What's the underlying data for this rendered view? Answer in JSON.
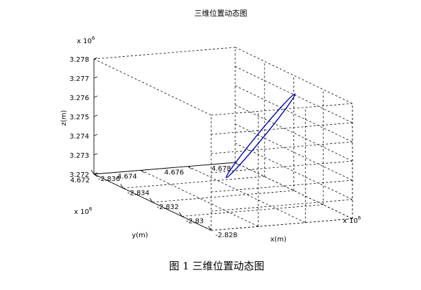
{
  "chart_data": {
    "type": "line",
    "title": "三维位置动态图",
    "xlabel": "x(m)",
    "ylabel": "y(m)",
    "zlabel": "z(m)",
    "x_exponent": "x 10",
    "y_exponent": "x 10",
    "z_exponent": "x 10",
    "exponent_power": "6",
    "xlim": [
      -2.836,
      -2.828
    ],
    "ylim": [
      4.672,
      4.678
    ],
    "zlim": [
      3.272,
      3.278
    ],
    "x_ticks": [
      "-2.836",
      "-2.834",
      "-2.832",
      "-2.83",
      "-2.828"
    ],
    "y_ticks": [
      "4.672",
      "4.674",
      "4.676",
      "4.678"
    ],
    "z_ticks": [
      "3.272",
      "3.273",
      "3.274",
      "3.275",
      "3.276",
      "3.277",
      "3.278"
    ],
    "grid": true,
    "line_color": "#0000b0",
    "series": [
      {
        "path_pixels_note": "",
        "ellipse": {
          "start_z": 3.273,
          "end_z": 3.277
        }
      }
    ]
  },
  "caption": "图 1  三维位置动态图"
}
